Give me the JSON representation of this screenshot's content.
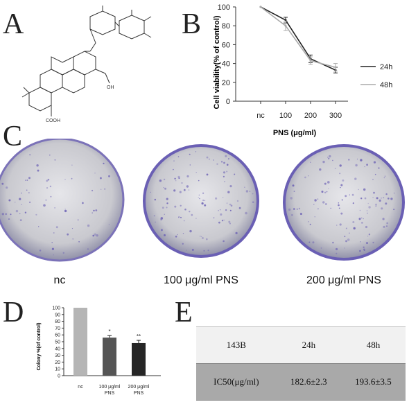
{
  "panels": {
    "a": "A",
    "b": "B",
    "c": "C",
    "d": "D",
    "e": "E"
  },
  "chart_b": {
    "type": "line",
    "categories": [
      "nc",
      "100",
      "200",
      "300"
    ],
    "series": [
      {
        "name": "24h",
        "values": [
          100,
          86,
          45,
          33
        ],
        "errors": [
          0,
          3,
          4,
          3
        ],
        "color": "#222222"
      },
      {
        "name": "48h",
        "values": [
          100,
          80,
          43,
          36
        ],
        "errors": [
          0,
          5,
          4,
          4
        ],
        "color": "#aaaaaa"
      }
    ],
    "xlabel": "PNS (μg/ml)",
    "ylabel": "Cell viability(% of control)",
    "ylim": [
      0,
      100
    ],
    "yticks": [
      0,
      20,
      40,
      60,
      80,
      100
    ],
    "legend": "right"
  },
  "chart_d": {
    "type": "bar",
    "categories": [
      "nc",
      "100 μg/ml PNS",
      "200 μg/ml PNS"
    ],
    "values": [
      100,
      56,
      48
    ],
    "errors": [
      0,
      3,
      4
    ],
    "significance": [
      "",
      "*",
      "**"
    ],
    "colors": [
      "#b5b5b5",
      "#555555",
      "#262626"
    ],
    "ylabel": "Colony %(of control)",
    "ylim": [
      0,
      100
    ],
    "yticks": [
      0,
      10,
      20,
      30,
      40,
      50,
      60,
      70,
      80,
      90,
      100
    ]
  },
  "chart_data": [
    {
      "type": "line",
      "categories": [
        "nc",
        "100",
        "200",
        "300"
      ],
      "series": [
        {
          "name": "24h",
          "values": [
            100,
            86,
            45,
            33
          ]
        },
        {
          "name": "48h",
          "values": [
            100,
            80,
            43,
            36
          ]
        }
      ],
      "xlabel": "PNS (μg/ml)",
      "ylabel": "Cell viability(% of control)",
      "ylim": [
        0,
        100
      ]
    },
    {
      "type": "bar",
      "categories": [
        "nc",
        "100 μg/ml PNS",
        "200 μg/ml PNS"
      ],
      "values": [
        100,
        56,
        48
      ],
      "ylabel": "Colony %(of control)",
      "ylim": [
        0,
        100
      ]
    },
    {
      "type": "table",
      "columns": [
        "143B",
        "24h",
        "48h"
      ],
      "rows": [
        [
          "IC50(μg/ml)",
          "182.6±2.3",
          "193.6±3.5"
        ]
      ]
    }
  ],
  "dishes": {
    "labels": [
      "nc",
      "100 μg/ml PNS",
      "200 μg/ml PNS"
    ]
  },
  "table_e": {
    "header": [
      "143B",
      "24h",
      "48h"
    ],
    "row": [
      "IC50(μg/ml)",
      "182.6±2.3",
      "193.6±3.5"
    ]
  },
  "structure": {
    "oh": "OH",
    "cooh": "COOH"
  },
  "colors": {
    "stain": "#6a5fb4",
    "dish_bg": "#d9d9dd"
  }
}
